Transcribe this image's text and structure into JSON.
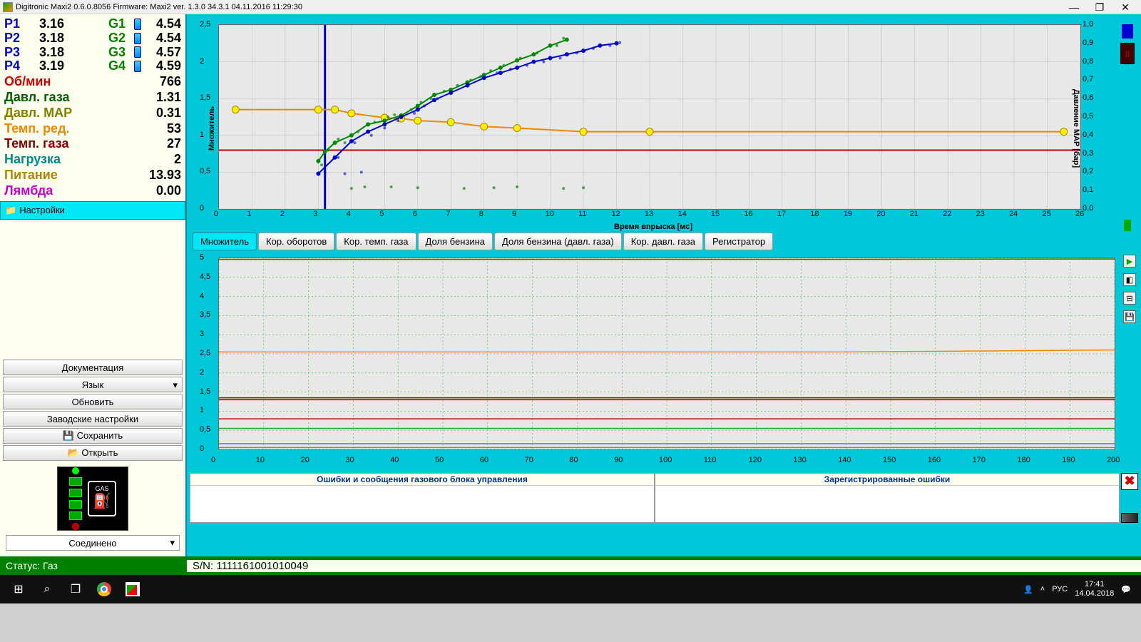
{
  "titlebar": {
    "text": "Digitronic Maxi2 0.6.0.8056 Firmware: Maxi2  ver. 1.3.0  34.3.1   04.11.2016 11:29:30"
  },
  "injectors": {
    "P": [
      {
        "label": "P1",
        "value": "3.16"
      },
      {
        "label": "P2",
        "value": "3.18"
      },
      {
        "label": "P3",
        "value": "3.18"
      },
      {
        "label": "P4",
        "value": "3.19"
      }
    ],
    "G": [
      {
        "label": "G1",
        "value": "4.54"
      },
      {
        "label": "G2",
        "value": "4.54"
      },
      {
        "label": "G3",
        "value": "4.57"
      },
      {
        "label": "G4",
        "value": "4.59"
      }
    ]
  },
  "stats": [
    {
      "label": "Об/мин",
      "value": "766",
      "color": "#cc0000"
    },
    {
      "label": "Давл. газа",
      "value": "1.31",
      "color": "#006000"
    },
    {
      "label": "Давл. MAP",
      "value": "0.31",
      "color": "#808000"
    },
    {
      "label": "Темп. ред.",
      "value": "53",
      "color": "#ee8800"
    },
    {
      "label": "Темп. газа",
      "value": "27",
      "color": "#800000"
    },
    {
      "label": "Нагрузка",
      "value": "2",
      "color": "#008888"
    },
    {
      "label": "Питание",
      "value": "13.93",
      "color": "#aa8800"
    },
    {
      "label": "Лямбда",
      "value": "0.00",
      "color": "#cc00cc"
    }
  ],
  "settings_btn": "Настройки",
  "side_buttons": {
    "doc": "Документация",
    "lang": "Язык",
    "refresh": "Обновить",
    "factory": "Заводские настройки",
    "save": "Сохранить",
    "open": "Открыть"
  },
  "gas_label": "GAS",
  "conn_status": "Соединено",
  "top_chart": {
    "y_label_left": "Множитель",
    "y_label_right": "Давление MAP [бар]",
    "x_label": "Время впрыска [мс]",
    "x_min": 0,
    "x_max": 26,
    "x_step": 1,
    "y_min": 0,
    "y_max": 2.5,
    "y_step": 0.5,
    "y2_min": 0,
    "y2_max": 1.0,
    "y2_step": 0.1,
    "marker_x": 3.2,
    "red_h": 0.8,
    "colors": {
      "grid": "#bbbbbb",
      "bg": "#e8e8e8",
      "green": "#008800",
      "blue": "#0000cc",
      "orange": "#ee8800",
      "red": "#cc0000",
      "yellow_marker": "#ffee00"
    },
    "green_line": [
      [
        3.0,
        0.65
      ],
      [
        3.2,
        0.78
      ],
      [
        3.5,
        0.9
      ],
      [
        4.0,
        1.0
      ],
      [
        4.5,
        1.15
      ],
      [
        5.0,
        1.2
      ],
      [
        5.5,
        1.27
      ],
      [
        6.0,
        1.4
      ],
      [
        6.5,
        1.55
      ],
      [
        7.0,
        1.62
      ],
      [
        7.5,
        1.72
      ],
      [
        8.0,
        1.82
      ],
      [
        8.5,
        1.92
      ],
      [
        9.0,
        2.02
      ],
      [
        9.5,
        2.1
      ],
      [
        10.0,
        2.22
      ],
      [
        10.5,
        2.3
      ]
    ],
    "blue_line": [
      [
        3.0,
        0.48
      ],
      [
        3.5,
        0.7
      ],
      [
        4.0,
        0.92
      ],
      [
        4.5,
        1.05
      ],
      [
        5.0,
        1.15
      ],
      [
        5.5,
        1.25
      ],
      [
        6.0,
        1.35
      ],
      [
        6.5,
        1.48
      ],
      [
        7.0,
        1.58
      ],
      [
        7.5,
        1.68
      ],
      [
        8.0,
        1.78
      ],
      [
        8.5,
        1.85
      ],
      [
        9.0,
        1.92
      ],
      [
        9.5,
        2.0
      ],
      [
        10.0,
        2.05
      ],
      [
        10.5,
        2.1
      ],
      [
        11.0,
        2.15
      ],
      [
        11.5,
        2.22
      ],
      [
        12.0,
        2.25
      ]
    ],
    "orange_line": [
      [
        0.5,
        1.35
      ],
      [
        3.0,
        1.35
      ],
      [
        3.5,
        1.35
      ],
      [
        4.0,
        1.3
      ],
      [
        5.0,
        1.24
      ],
      [
        5.5,
        1.23
      ],
      [
        6.0,
        1.2
      ],
      [
        7.0,
        1.18
      ],
      [
        8.0,
        1.12
      ],
      [
        9.0,
        1.1
      ],
      [
        11.0,
        1.05
      ],
      [
        13.0,
        1.05
      ],
      [
        25.5,
        1.05
      ]
    ],
    "green_scatter": [
      [
        3.1,
        0.6
      ],
      [
        3.3,
        0.8
      ],
      [
        3.6,
        0.95
      ],
      [
        3.8,
        0.9
      ],
      [
        4.2,
        1.05
      ],
      [
        4.7,
        1.18
      ],
      [
        5.1,
        1.25
      ],
      [
        5.3,
        1.28
      ],
      [
        5.8,
        1.35
      ],
      [
        6.1,
        1.45
      ],
      [
        6.4,
        1.5
      ],
      [
        6.8,
        1.6
      ],
      [
        7.2,
        1.68
      ],
      [
        7.6,
        1.75
      ],
      [
        7.9,
        1.8
      ],
      [
        8.2,
        1.88
      ],
      [
        8.6,
        1.95
      ],
      [
        9.1,
        2.05
      ],
      [
        9.6,
        2.12
      ],
      [
        10.2,
        2.22
      ],
      [
        10.4,
        2.32
      ],
      [
        4.0,
        0.28
      ],
      [
        4.4,
        0.3
      ],
      [
        5.2,
        0.3
      ],
      [
        6.0,
        0.29
      ],
      [
        7.4,
        0.28
      ],
      [
        8.3,
        0.29
      ],
      [
        9.0,
        0.3
      ],
      [
        10.4,
        0.28
      ],
      [
        11.0,
        0.29
      ]
    ],
    "blue_scatter": [
      [
        3.2,
        0.5
      ],
      [
        3.6,
        0.7
      ],
      [
        3.8,
        0.48
      ],
      [
        4.1,
        0.9
      ],
      [
        4.3,
        0.5
      ],
      [
        4.6,
        1.0
      ],
      [
        5.0,
        1.1
      ],
      [
        5.4,
        1.2
      ],
      [
        5.9,
        1.3
      ],
      [
        6.2,
        1.4
      ],
      [
        6.6,
        1.5
      ],
      [
        7.0,
        1.58
      ],
      [
        7.5,
        1.7
      ],
      [
        8.0,
        1.78
      ],
      [
        8.4,
        1.85
      ],
      [
        8.8,
        1.9
      ],
      [
        9.3,
        1.95
      ],
      [
        9.8,
        2.0
      ],
      [
        10.3,
        2.05
      ],
      [
        10.8,
        2.12
      ],
      [
        11.3,
        2.18
      ],
      [
        11.8,
        2.22
      ],
      [
        12.1,
        2.26
      ]
    ]
  },
  "tabs": [
    "Множитель",
    "Кор. оборотов",
    "Кор. темп. газа",
    "Доля бензина",
    "Доля бензина (давл. газа)",
    "Кор. давл. газа",
    "Регистратор"
  ],
  "active_tab": 0,
  "bottom_chart": {
    "x_min": 0,
    "x_max": 200,
    "x_step": 10,
    "y_min": 0,
    "y_max": 5,
    "y_step": 0.5,
    "colors": {
      "grid_green": "#22aa22",
      "bg": "#e8e8e8"
    },
    "lines": [
      {
        "color": "#008800",
        "y": 4.97,
        "y2": 4.98
      },
      {
        "color": "#ee8800",
        "y": 2.55,
        "y2": 2.6
      },
      {
        "color": "#444400",
        "y": 1.35,
        "y2": 1.35
      },
      {
        "color": "#800000",
        "y": 1.3,
        "y2": 1.3
      },
      {
        "color": "#cc0000",
        "y": 0.8,
        "y2": 0.8
      },
      {
        "color": "#22aa22",
        "y": 0.55,
        "y2": 0.55
      },
      {
        "color": "#6666ff",
        "y": 0.15,
        "y2": 0.15
      },
      {
        "color": "#808080",
        "y": 0.05,
        "y2": 0.05
      }
    ]
  },
  "errors": {
    "left_title": "Ошибки и сообщения газового блока управления",
    "right_title": "Зарегистрированные ошибки"
  },
  "status": {
    "label": "Статус: Газ",
    "sn": "S/N: 1111161001010049"
  },
  "taskbar": {
    "lang": "РУС",
    "time": "17:41",
    "date": "14.04.2018"
  }
}
